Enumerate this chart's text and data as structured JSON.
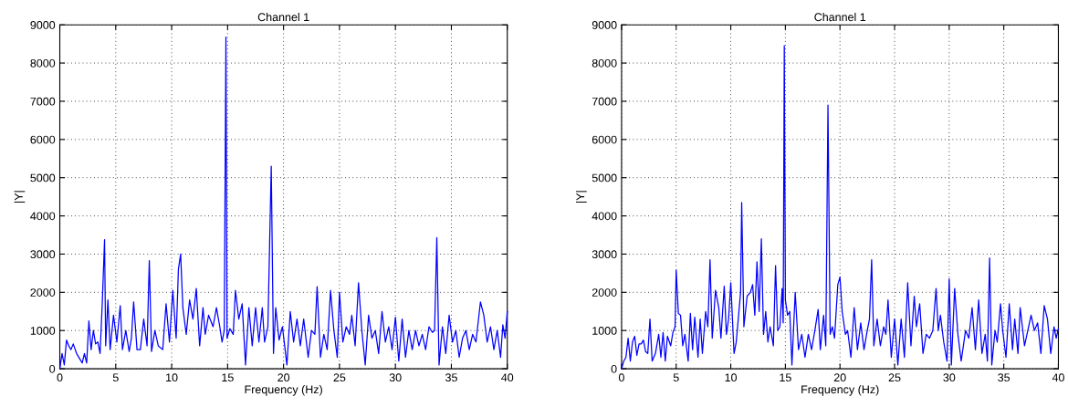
{
  "chart_data": [
    {
      "type": "line",
      "title": "Channel 1",
      "xlabel": "Frequency (Hz)",
      "ylabel": "|Y|",
      "xlim": [
        0,
        40
      ],
      "ylim": [
        0,
        9000
      ],
      "xticks": [
        0,
        5,
        10,
        15,
        20,
        25,
        30,
        35,
        40
      ],
      "yticks": [
        0,
        1000,
        2000,
        3000,
        4000,
        5000,
        6000,
        7000,
        8000,
        9000
      ],
      "grid": true,
      "line_style": "solid",
      "series": [
        {
          "color": "#0000ff",
          "x": [
            0.0,
            0.2,
            0.4,
            0.6,
            0.8,
            1.0,
            1.2,
            1.5,
            1.8,
            2.0,
            2.2,
            2.4,
            2.6,
            2.8,
            3.0,
            3.2,
            3.4,
            3.6,
            3.8,
            4.0,
            4.1,
            4.3,
            4.5,
            4.8,
            5.1,
            5.4,
            5.6,
            5.9,
            6.2,
            6.4,
            6.6,
            6.9,
            7.2,
            7.5,
            7.8,
            8.0,
            8.2,
            8.5,
            8.8,
            9.2,
            9.5,
            9.8,
            10.1,
            10.4,
            10.6,
            10.8,
            11.0,
            11.3,
            11.6,
            11.9,
            12.2,
            12.5,
            12.8,
            13.0,
            13.3,
            13.7,
            14.0,
            14.3,
            14.5,
            14.7,
            14.85,
            14.95,
            15.2,
            15.5,
            15.7,
            16.0,
            16.3,
            16.6,
            16.9,
            17.2,
            17.5,
            17.8,
            18.1,
            18.3,
            18.6,
            18.9,
            19.1,
            19.3,
            19.6,
            19.9,
            20.3,
            20.6,
            20.9,
            21.2,
            21.5,
            21.8,
            22.2,
            22.5,
            22.8,
            23.0,
            23.3,
            23.6,
            23.9,
            24.2,
            24.5,
            24.8,
            25.0,
            25.3,
            25.6,
            25.9,
            26.1,
            26.4,
            26.7,
            27.0,
            27.3,
            27.6,
            27.9,
            28.2,
            28.5,
            28.8,
            29.1,
            29.4,
            29.7,
            30.0,
            30.3,
            30.6,
            30.9,
            31.2,
            31.5,
            31.8,
            32.1,
            32.4,
            32.7,
            33.0,
            33.3,
            33.5,
            33.7,
            33.9,
            34.2,
            34.5,
            34.8,
            35.1,
            35.4,
            35.7,
            36.0,
            36.3,
            36.6,
            36.9,
            37.2,
            37.6,
            37.9,
            38.2,
            38.5,
            38.8,
            39.1,
            39.4,
            39.6,
            39.8,
            40.0
          ],
          "values": [
            0,
            400,
            100,
            750,
            600,
            500,
            650,
            400,
            250,
            150,
            400,
            150,
            1250,
            500,
            1000,
            650,
            700,
            400,
            1750,
            3380,
            600,
            1800,
            500,
            1400,
            700,
            1650,
            500,
            1000,
            450,
            800,
            1750,
            500,
            500,
            1300,
            600,
            2830,
            450,
            1000,
            600,
            500,
            1700,
            700,
            2050,
            800,
            2600,
            3000,
            1600,
            900,
            1800,
            1300,
            2100,
            600,
            1600,
            900,
            1400,
            1100,
            1600,
            1100,
            700,
            1000,
            8680,
            800,
            1050,
            900,
            2050,
            1300,
            1700,
            100,
            1600,
            600,
            1600,
            700,
            1600,
            700,
            1100,
            5300,
            400,
            1600,
            750,
            1100,
            100,
            1500,
            700,
            1300,
            600,
            1300,
            300,
            1000,
            900,
            2150,
            300,
            900,
            500,
            2050,
            1000,
            300,
            2000,
            700,
            1100,
            900,
            1400,
            600,
            2250,
            1000,
            100,
            1400,
            800,
            1000,
            400,
            1500,
            700,
            1100,
            500,
            1350,
            200,
            1300,
            300,
            1000,
            500,
            1000,
            600,
            900,
            500,
            1100,
            950,
            1000,
            3430,
            100,
            1100,
            400,
            1400,
            700,
            1000,
            300,
            800,
            1000,
            500,
            900,
            700,
            1750,
            1400,
            700,
            1100,
            500,
            1000,
            300,
            1150,
            800,
            1500
          ]
        }
      ]
    },
    {
      "type": "line",
      "title": "Channel 1",
      "xlabel": "Frequency (Hz)",
      "ylabel": "|Y|",
      "xlim": [
        0,
        40
      ],
      "ylim": [
        0,
        9000
      ],
      "xticks": [
        0,
        5,
        10,
        15,
        20,
        25,
        30,
        35,
        40
      ],
      "yticks": [
        0,
        1000,
        2000,
        3000,
        4000,
        5000,
        6000,
        7000,
        8000,
        9000
      ],
      "grid": true,
      "line_style": "solid",
      "series": [
        {
          "color": "#0000ff",
          "x": [
            0.0,
            0.2,
            0.4,
            0.6,
            0.8,
            1.0,
            1.2,
            1.4,
            1.6,
            1.8,
            2.0,
            2.2,
            2.4,
            2.6,
            2.8,
            3.1,
            3.4,
            3.6,
            3.8,
            4.0,
            4.2,
            4.5,
            4.7,
            4.9,
            5.0,
            5.2,
            5.4,
            5.6,
            5.8,
            6.1,
            6.3,
            6.5,
            6.7,
            7.0,
            7.2,
            7.4,
            7.7,
            7.9,
            8.1,
            8.3,
            8.6,
            8.9,
            9.1,
            9.4,
            9.6,
            9.8,
            10.0,
            10.3,
            10.5,
            10.9,
            11.0,
            11.2,
            11.5,
            11.8,
            12.0,
            12.2,
            12.4,
            12.6,
            12.8,
            13.0,
            13.2,
            13.4,
            13.6,
            13.9,
            14.1,
            14.3,
            14.5,
            14.7,
            14.8,
            14.9,
            15.0,
            15.2,
            15.4,
            15.6,
            15.9,
            16.2,
            16.5,
            16.8,
            17.1,
            17.4,
            17.7,
            18.0,
            18.2,
            18.5,
            18.7,
            18.9,
            19.1,
            19.3,
            19.5,
            19.8,
            20.0,
            20.2,
            20.5,
            20.7,
            21.0,
            21.3,
            21.6,
            21.9,
            22.2,
            22.5,
            22.7,
            22.9,
            23.1,
            23.4,
            23.7,
            24.0,
            24.2,
            24.4,
            24.7,
            25.0,
            25.3,
            25.6,
            25.9,
            26.2,
            26.5,
            26.8,
            27.0,
            27.3,
            27.6,
            27.9,
            28.2,
            28.5,
            28.8,
            29.0,
            29.2,
            29.5,
            29.8,
            30.0,
            30.2,
            30.5,
            30.8,
            31.1,
            31.5,
            31.8,
            32.1,
            32.4,
            32.7,
            33.0,
            33.3,
            33.5,
            33.7,
            33.9,
            34.2,
            34.4,
            34.7,
            34.9,
            35.2,
            35.5,
            35.8,
            36.0,
            36.3,
            36.5,
            36.9,
            37.2,
            37.5,
            37.8,
            38.1,
            38.4,
            38.7,
            39.0,
            39.3,
            39.6,
            39.8,
            40.0
          ],
          "values": [
            0,
            200,
            300,
            800,
            200,
            700,
            850,
            350,
            650,
            650,
            750,
            450,
            400,
            1300,
            200,
            400,
            900,
            300,
            950,
            200,
            850,
            600,
            950,
            1100,
            2580,
            1450,
            1400,
            600,
            900,
            200,
            1450,
            500,
            1350,
            300,
            1300,
            400,
            1500,
            1100,
            2850,
            800,
            2050,
            1600,
            800,
            2160,
            900,
            1300,
            2250,
            400,
            700,
            2000,
            4350,
            1100,
            1900,
            2000,
            2200,
            1400,
            2800,
            1500,
            3400,
            900,
            1500,
            700,
            1100,
            600,
            2700,
            1000,
            1100,
            2100,
            1200,
            8450,
            1800,
            1400,
            1500,
            100,
            2000,
            500,
            900,
            300,
            900,
            500,
            1000,
            1550,
            500,
            1400,
            600,
            6900,
            900,
            1100,
            800,
            2200,
            2400,
            1500,
            900,
            1000,
            300,
            1600,
            500,
            1200,
            500,
            1000,
            1300,
            2850,
            600,
            1300,
            600,
            1100,
            900,
            1800,
            300,
            1300,
            100,
            1300,
            300,
            2250,
            600,
            1900,
            1100,
            1700,
            400,
            900,
            800,
            1000,
            2100,
            1000,
            1400,
            700,
            200,
            2350,
            100,
            2100,
            900,
            200,
            1000,
            800,
            1600,
            500,
            1800,
            400,
            900,
            200,
            2900,
            100,
            1000,
            700,
            1700,
            1000,
            300,
            1700,
            500,
            1300,
            400,
            1600,
            600,
            1000,
            1400,
            1000,
            1200,
            400,
            1650,
            1300,
            400,
            1100,
            800,
            1050
          ]
        }
      ]
    }
  ]
}
